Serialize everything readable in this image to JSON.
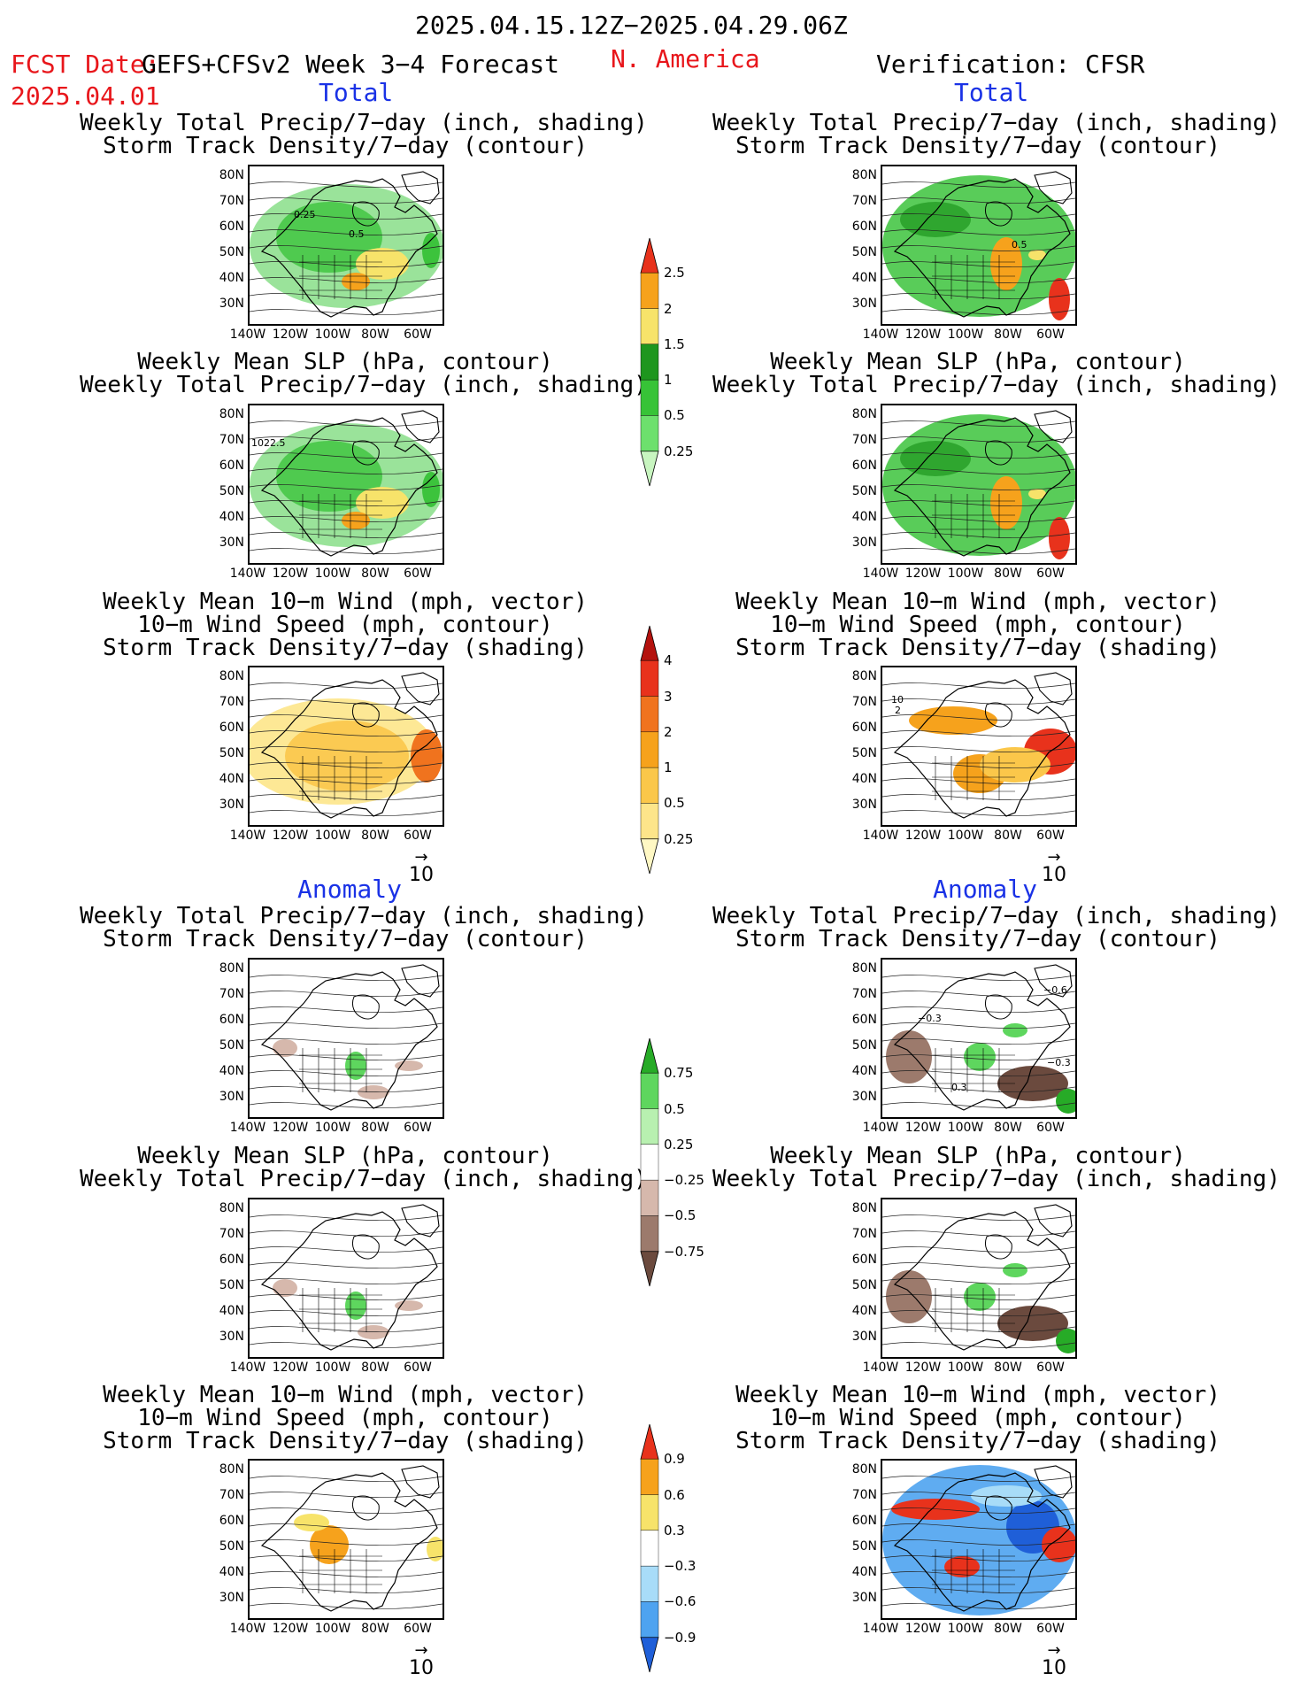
{
  "header": {
    "period": "2025.04.15.12Z−2025.04.29.06Z",
    "region": "N. America",
    "fcst_label": "FCST Date:",
    "model": "GEFS+CFSv2 Week 3−4 Forecast",
    "fcst_date": "2025.04.01",
    "verification": "Verification: CFSR"
  },
  "sections": {
    "total": "Total",
    "anomaly": "Anomaly"
  },
  "titles": {
    "precip_storm": [
      "Weekly Total Precip/7−day (inch, shading)",
      "Storm Track Density/7−day (contour)"
    ],
    "slp_precip": [
      "Weekly Mean SLP (hPa, contour)",
      "Weekly Total Precip/7−day (inch, shading)"
    ],
    "wind_storm": [
      "Weekly Mean 10−m Wind (mph, vector)",
      "10−m Wind Speed (mph, contour)",
      "Storm Track Density/7−day (shading)"
    ]
  },
  "axes": {
    "lat_ticks": [
      "80N",
      "70N",
      "60N",
      "50N",
      "40N",
      "30N"
    ],
    "lon_ticks": [
      "140W",
      "120W",
      "100W",
      "80W",
      "60W"
    ]
  },
  "vector_ref": "10",
  "map_labels": {
    "fcst_storm_total": [
      "0.25",
      "0.5"
    ],
    "fcst_slp_total": [
      "1022.5"
    ],
    "obs_storm_total": [
      "0.5"
    ],
    "obs_wind_total": [
      "10",
      "2"
    ],
    "obs_storm_anom": [
      "−0.3",
      "−0.6",
      "0.3",
      "−0.3"
    ]
  },
  "colorbars": {
    "precip_total": {
      "colors": [
        "#c8f5c0",
        "#6de06d",
        "#37c337",
        "#1e961e",
        "#f7e36a",
        "#f6a21c",
        "#e8321c"
      ],
      "labels": [
        "0.25",
        "0.5",
        "1",
        "1.5",
        "2",
        "2.5"
      ]
    },
    "storm_total": {
      "colors": [
        "#fff8c4",
        "#fde58a",
        "#fbc74a",
        "#f6a21c",
        "#f0731e",
        "#e8321c",
        "#b4120e"
      ],
      "labels": [
        "0.25",
        "0.5",
        "1",
        "2",
        "3",
        "4"
      ]
    },
    "precip_anom": {
      "colors": [
        "#6b4a3e",
        "#9c7a6c",
        "#d6b8ac",
        "#ffffff",
        "#b8f0b0",
        "#5ed65e",
        "#27ab27"
      ],
      "labels": [
        "−0.75",
        "−0.5",
        "−0.25",
        "0.25",
        "0.5",
        "0.75"
      ]
    },
    "storm_anom": {
      "colors": [
        "#1f5fd8",
        "#4ea3f0",
        "#a8dcf8",
        "#ffffff",
        "#f7e36a",
        "#f6a21c",
        "#e8321c"
      ],
      "labels": [
        "−0.9",
        "−0.6",
        "−0.3",
        "0.3",
        "0.6",
        "0.9"
      ]
    }
  }
}
